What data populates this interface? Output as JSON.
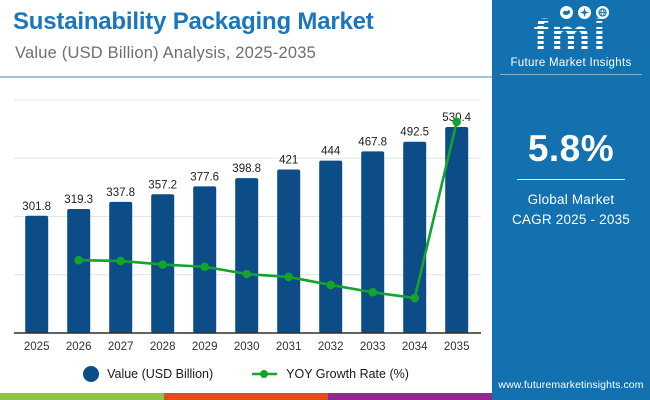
{
  "header": {
    "title": "Sustainability Packaging Market",
    "subtitle": "Value (USD Billion) Analysis, 2025-2035"
  },
  "chart_data": {
    "type": "bar",
    "title": "Sustainability Packaging Market Value (USD Billion), 2025-2035",
    "categories": [
      "2025",
      "2026",
      "2027",
      "2028",
      "2029",
      "2030",
      "2031",
      "2032",
      "2033",
      "2034",
      "2035"
    ],
    "series": [
      {
        "name": "Value (USD Billion)",
        "type": "bar",
        "axis": "primary",
        "color": "#0d4d87",
        "values": [
          301.8,
          319.3,
          337.8,
          357.2,
          377.6,
          398.8,
          421,
          444,
          467.8,
          492.5,
          530.4
        ]
      },
      {
        "name": "YOY Growth Rate (%)",
        "type": "line",
        "axis": "secondary",
        "color": "#15a22d",
        "values": [
          null,
          5.8,
          5.79,
          5.74,
          5.71,
          5.61,
          5.57,
          5.46,
          5.36,
          5.28,
          7.7
        ]
      }
    ],
    "primary_axis": {
      "min": 0,
      "max": 600,
      "gridline_step": 150,
      "tick_labels_visible": false
    },
    "secondary_axis": {
      "min": 4.8,
      "max": 8.0,
      "tick_labels_visible": false
    },
    "grid": true,
    "legend_position": "bottom",
    "data_labels_visible": true
  },
  "sidebar": {
    "logo_text": "fmi",
    "logo_subtext": "Future Market Insights",
    "cagr_value": "5.8%",
    "cagr_label_line1": "Global Market",
    "cagr_label_line2": "CAGR 2025 - 2035",
    "website": "www.futuremarketinsights.com",
    "background": "#1371b0"
  },
  "colors": {
    "title_blue": "#1b76bc",
    "subtitle_gray": "#6e6f72",
    "bar_navy": "#0d4d87",
    "line_green": "#15a22d",
    "sidebar_blue": "#1371b0",
    "header_divider": "#a6c4d8",
    "gridline": "#e4e4e4",
    "axis_line": "#2e2e2e",
    "strip_green": "#8dc63f",
    "strip_orange": "#e8491d",
    "strip_purple": "#92278f"
  }
}
